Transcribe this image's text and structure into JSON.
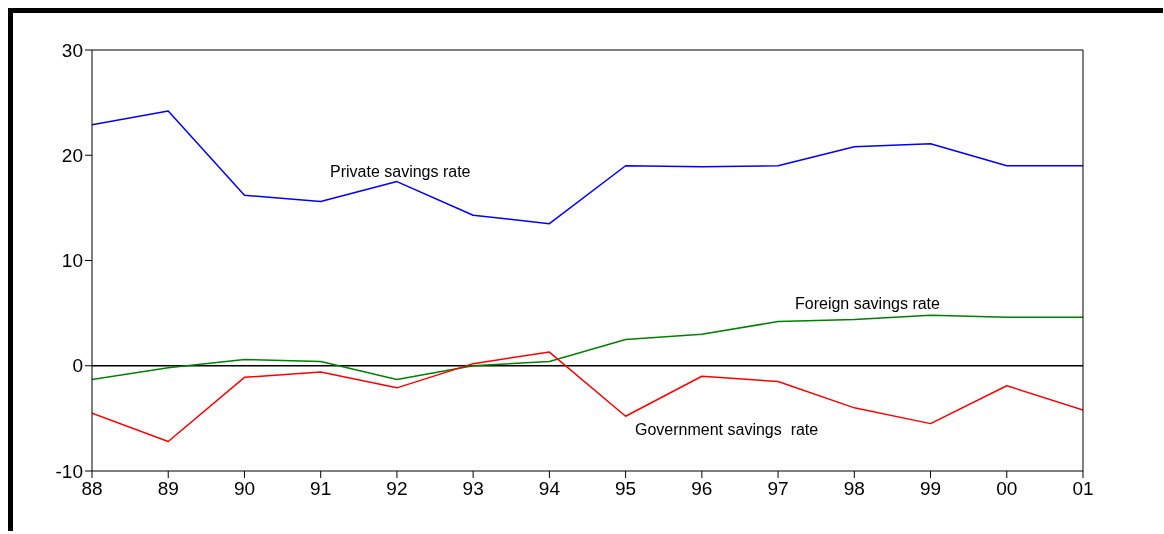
{
  "chart_data": {
    "type": "line",
    "categories": [
      "88",
      "89",
      "90",
      "91",
      "92",
      "93",
      "94",
      "95",
      "96",
      "97",
      "98",
      "99",
      "00",
      "01"
    ],
    "series": [
      {
        "name": "Private savings rate",
        "color": "#0000ff",
        "values": [
          22.9,
          24.2,
          16.2,
          15.6,
          17.5,
          14.3,
          13.5,
          19.0,
          18.9,
          19.0,
          20.8,
          21.1,
          19.0,
          19.0
        ]
      },
      {
        "name": "Foreign savings rate",
        "color": "#008000",
        "values": [
          -1.3,
          -0.2,
          0.6,
          0.4,
          -1.3,
          0,
          0.4,
          2.5,
          3.0,
          4.2,
          4.4,
          4.8,
          4.6,
          4.6
        ]
      },
      {
        "name": "Government savings  rate",
        "color": "#ff0000",
        "values": [
          -4.5,
          -7.2,
          -1.1,
          -0.6,
          -2.1,
          0.2,
          1.3,
          -4.8,
          -1.0,
          -1.5,
          -4.0,
          -5.5,
          -1.9,
          -4.2
        ]
      }
    ],
    "ylim": [
      -10,
      30
    ],
    "yticks": [
      -10,
      0,
      10,
      20,
      30
    ],
    "ref_lines": [
      {
        "axis": "y",
        "value": 0,
        "color": "#000000"
      }
    ],
    "marker": "none",
    "line_style": "solid"
  }
}
